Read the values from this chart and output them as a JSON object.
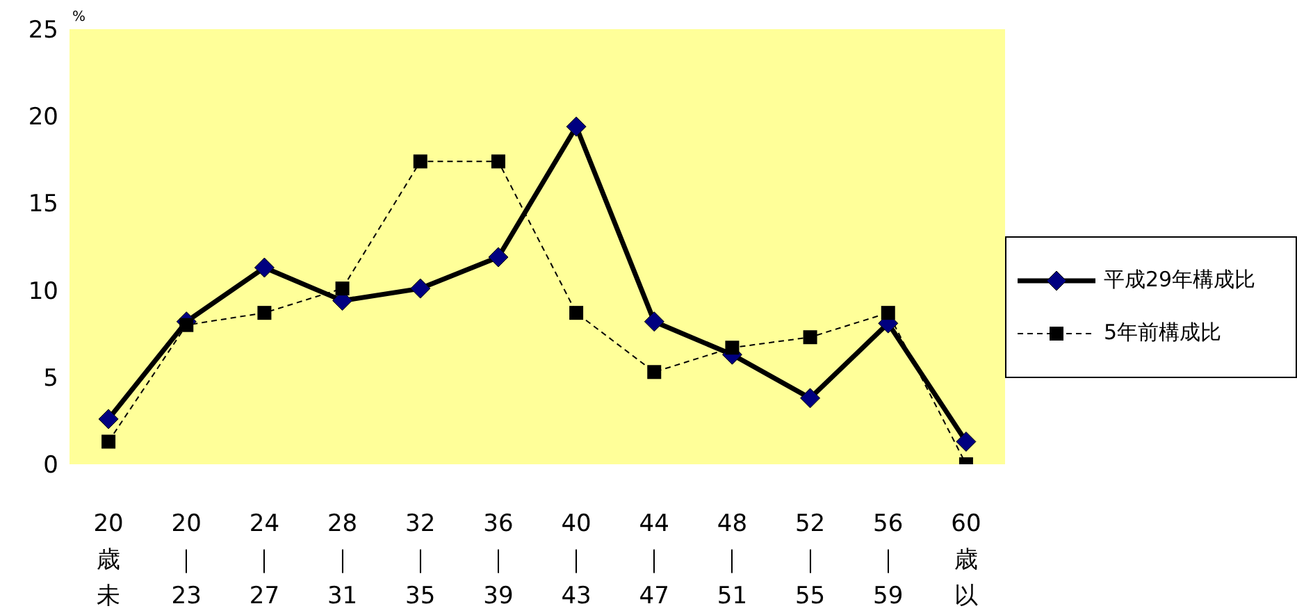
{
  "chart_data": {
    "type": "line",
    "ylabel": "%",
    "categories": [
      "20歳未",
      "20｜23",
      "24｜27",
      "28｜31",
      "32｜35",
      "36｜39",
      "40｜43",
      "44｜47",
      "48｜51",
      "52｜55",
      "56｜59",
      "60歳以"
    ],
    "series": [
      {
        "name": "平成29年構成比",
        "color": "#000080",
        "marker": "diamond",
        "line_style": "solid",
        "values": [
          2.6,
          8.2,
          11.3,
          9.4,
          10.1,
          11.9,
          19.4,
          8.2,
          6.3,
          3.8,
          8.1,
          1.3
        ]
      },
      {
        "name": "5年前構成比",
        "color": "#000000",
        "marker": "square",
        "line_style": "dashed",
        "values": [
          1.3,
          8.0,
          8.7,
          10.1,
          17.4,
          17.4,
          8.7,
          5.3,
          6.7,
          7.3,
          8.7,
          0.0
        ]
      }
    ],
    "ylim": [
      0,
      25
    ],
    "yticks": [
      0,
      5,
      10,
      15,
      20,
      25
    ],
    "grid": false,
    "legend": "right"
  }
}
